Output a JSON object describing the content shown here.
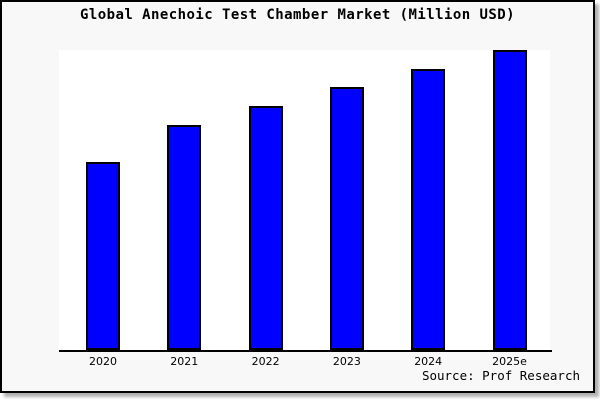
{
  "chart_data": {
    "type": "bar",
    "title": "Global Anechoic Test Chamber Market (Million USD)",
    "categories": [
      "2020",
      "2021",
      "2022",
      "2023",
      "2024",
      "2025e"
    ],
    "values": [
      62.7,
      75.0,
      81.3,
      87.6,
      93.6,
      100
    ],
    "xlabel": "",
    "ylabel": "",
    "ylim": [
      0,
      100
    ],
    "y_axis_visible": false,
    "grid": false,
    "legend": "none",
    "value_basis": "no y-axis scale or data labels shown; values estimated as percent of tallest bar (2025e)",
    "source": "Source: Prof Research",
    "colors": {
      "bar_fill": "#0000FF",
      "bar_border": "#000000",
      "plot_bg": "#FFFFFF",
      "frame_bg": "#F8F8F8",
      "frame_border": "#000000"
    }
  }
}
